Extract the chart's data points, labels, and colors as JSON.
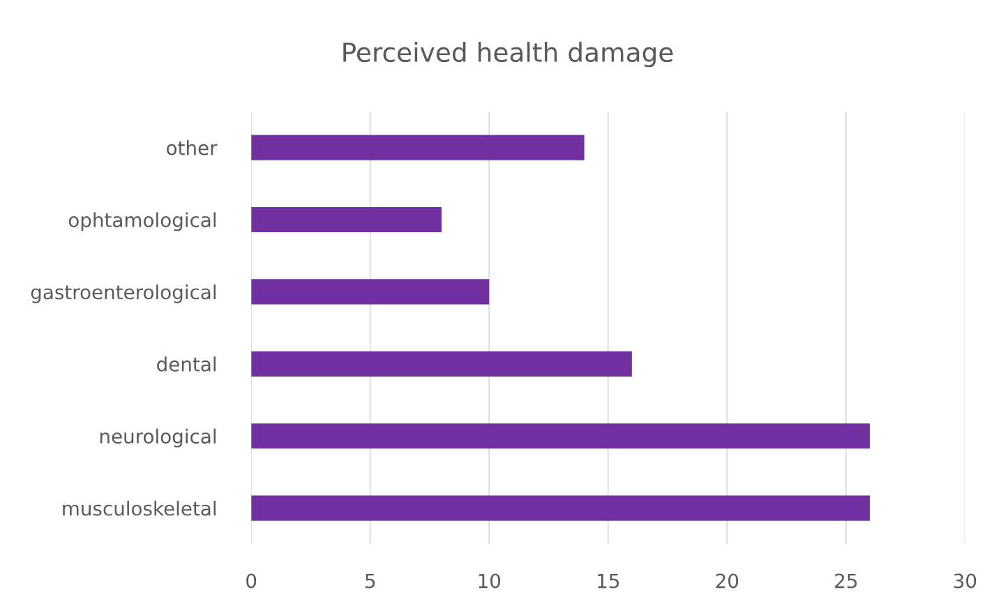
{
  "chart_data": {
    "type": "bar",
    "orientation": "horizontal",
    "title": "Perceived health damage",
    "categories": [
      "other",
      "ophtamological",
      "gastroenterological",
      "dental",
      "neurological",
      "musculoskeletal"
    ],
    "values": [
      14,
      8,
      10,
      16,
      26,
      26
    ],
    "color": "#7030a0",
    "xlim": [
      0,
      30
    ],
    "xticks": [
      0,
      5,
      10,
      15,
      20,
      25,
      30
    ],
    "grid": "x",
    "legend": false
  }
}
